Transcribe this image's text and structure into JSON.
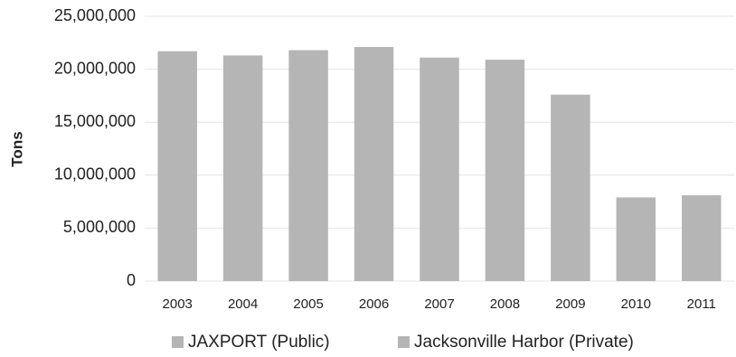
{
  "chart_data": {
    "type": "bar",
    "y_label": "Tons",
    "categories": [
      "2003",
      "2004",
      "2005",
      "2006",
      "2007",
      "2008",
      "2009",
      "2010",
      "2011"
    ],
    "series": [
      {
        "name": "JAXPORT (Public)",
        "color": "#b5b5b5",
        "values": [
          21700000,
          21300000,
          21800000,
          22100000,
          21100000,
          20900000,
          17600000,
          7900000,
          8100000
        ]
      },
      {
        "name": "Jacksonville Harbor (Private)",
        "color": "#b5b5b5",
        "values": [
          null,
          null,
          null,
          null,
          null,
          null,
          null,
          null,
          null
        ]
      }
    ],
    "ylim": [
      0,
      25000000
    ],
    "yticks": [
      0,
      {
        "value": 5000000,
        "label": "5,000,000"
      },
      {
        "value": 10000000,
        "label": "10,000,000"
      },
      {
        "value": 15000000,
        "label": "15,000,000"
      },
      {
        "value": 20000000,
        "label": "20,000,000"
      },
      {
        "value": 25000000,
        "label": "25,000,000"
      }
    ],
    "grid": true,
    "legend": "bottom"
  }
}
